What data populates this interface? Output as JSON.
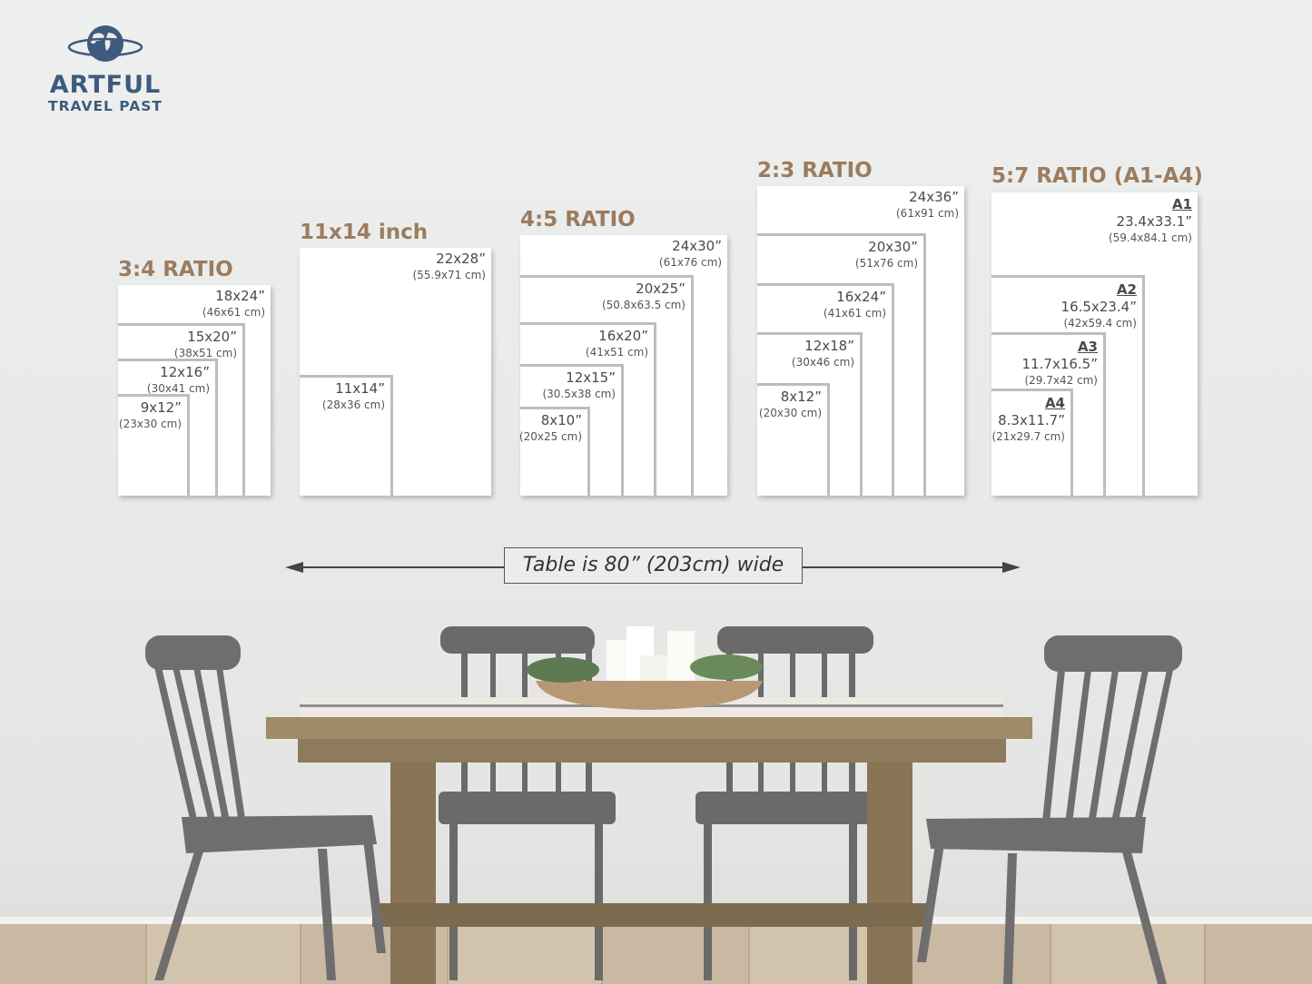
{
  "logo": {
    "line1": "ARTFUL",
    "line2": "TRAVEL PAST",
    "icon": "globe-icon",
    "color": "#3e5b7e"
  },
  "accent_color": "#9c7c5e",
  "groups": [
    {
      "title": "3:4 RATIO",
      "sizes": [
        {
          "inch": "18x24”",
          "cm": "(46x61 cm)"
        },
        {
          "inch": "15x20”",
          "cm": "(38x51 cm)"
        },
        {
          "inch": "12x16”",
          "cm": "(30x41 cm)"
        },
        {
          "inch": "9x12”",
          "cm": "(23x30 cm)"
        }
      ]
    },
    {
      "title": "11x14 inch",
      "sizes": [
        {
          "inch": "22x28”",
          "cm": "(55.9x71 cm)"
        },
        {
          "inch": "11x14”",
          "cm": "(28x36 cm)"
        }
      ]
    },
    {
      "title": "4:5 RATIO",
      "sizes": [
        {
          "inch": "24x30”",
          "cm": "(61x76 cm)"
        },
        {
          "inch": "20x25”",
          "cm": "(50.8x63.5 cm)"
        },
        {
          "inch": "16x20”",
          "cm": "(41x51 cm)"
        },
        {
          "inch": "12x15”",
          "cm": "(30.5x38 cm)"
        },
        {
          "inch": "8x10”",
          "cm": "(20x25 cm)"
        }
      ]
    },
    {
      "title": "2:3 RATIO",
      "sizes": [
        {
          "inch": "24x36”",
          "cm": "(61x91 cm)"
        },
        {
          "inch": "20x30”",
          "cm": "(51x76 cm)"
        },
        {
          "inch": "16x24”",
          "cm": "(41x61 cm)"
        },
        {
          "inch": "12x18”",
          "cm": "(30x46 cm)"
        },
        {
          "inch": "8x12”",
          "cm": "(20x30 cm)"
        }
      ]
    },
    {
      "title": "5:7 RATIO (A1-A4)",
      "sizes": [
        {
          "a": "A1",
          "inch": "23.4x33.1”",
          "cm": "(59.4x84.1 cm)"
        },
        {
          "a": "A2",
          "inch": "16.5x23.4”",
          "cm": "(42x59.4 cm)"
        },
        {
          "a": "A3",
          "inch": "11.7x16.5”",
          "cm": "(29.7x42 cm)"
        },
        {
          "a": "A4",
          "inch": "8.3x11.7”",
          "cm": "(21x29.7 cm)"
        }
      ]
    }
  ],
  "table_note": "Table is 80” (203cm) wide"
}
